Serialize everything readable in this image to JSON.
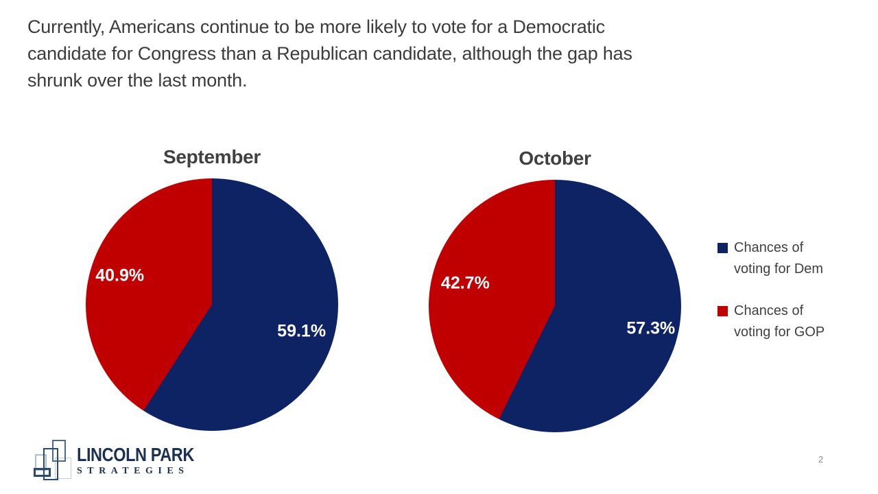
{
  "slide": {
    "title": "Currently, Americans continue to be more likely to vote for a Democratic\ncandidate for Congress than a Republican candidate, although the gap has\nshrunk over the last month.",
    "page_number": "2"
  },
  "colors": {
    "dem": "#0D2363",
    "gop": "#C00000",
    "title_text": "#3C3C3C",
    "chart_title_text": "#404040",
    "logo_navy": "#1B3153"
  },
  "chart_data": [
    {
      "type": "pie",
      "title": "September",
      "start_angle_deg": 0,
      "direction": "clockwise",
      "slices": [
        {
          "name": "Chances of voting for Dem",
          "value": 59.1,
          "label": "59.1%",
          "color": "#0D2363"
        },
        {
          "name": "Chances of voting for GOP",
          "value": 40.9,
          "label": "40.9%",
          "color": "#C00000"
        }
      ]
    },
    {
      "type": "pie",
      "title": "October",
      "start_angle_deg": 0,
      "direction": "clockwise",
      "slices": [
        {
          "name": "Chances of voting for Dem",
          "value": 57.3,
          "label": "57.3%",
          "color": "#0D2363"
        },
        {
          "name": "Chances of voting for GOP",
          "value": 42.7,
          "label": "42.7%",
          "color": "#C00000"
        }
      ]
    }
  ],
  "legend": {
    "position": "right",
    "items": [
      {
        "label": "Chances of\nvoting for Dem",
        "color": "#0D2363"
      },
      {
        "label": "Chances of\nvoting for GOP",
        "color": "#C00000"
      }
    ]
  },
  "logo": {
    "line1": "LINCOLN PARK",
    "line2": "STRATEGIES"
  }
}
